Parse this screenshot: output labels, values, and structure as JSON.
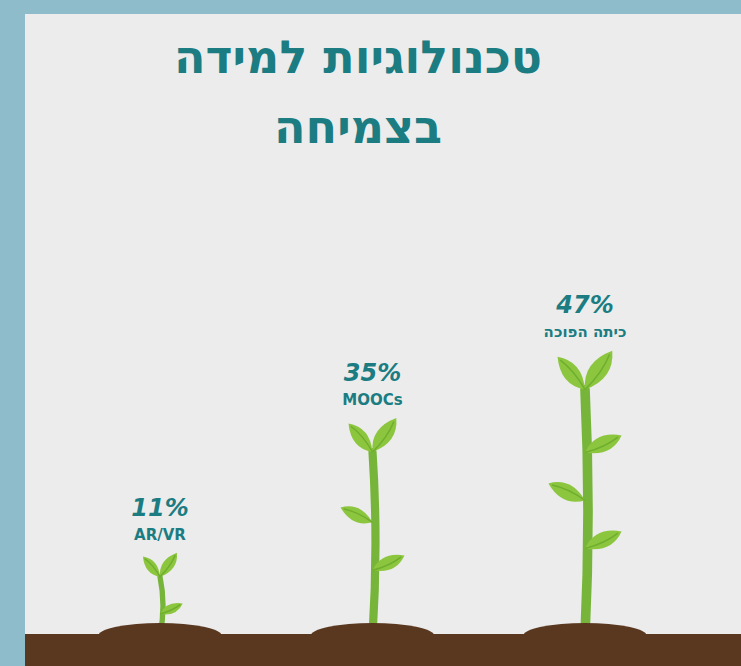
{
  "chart_data": {
    "type": "bar",
    "title": "טכנולוגיות למידה בצמיחה",
    "categories": [
      "AR/VR",
      "MOOCs",
      "כיתה הפוכה"
    ],
    "values": [
      11,
      35,
      47
    ],
    "value_labels": [
      "11%",
      "35%",
      "47%"
    ],
    "color": "#8cc63f",
    "data_labels": true,
    "tick_labels": false
  }
}
